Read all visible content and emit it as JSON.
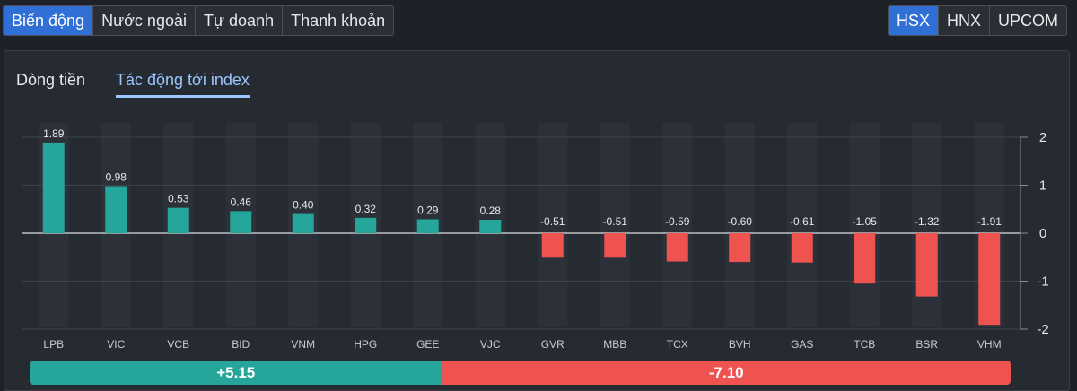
{
  "main_tabs": [
    {
      "label": "Biến động",
      "active": true
    },
    {
      "label": "Nước ngoài",
      "active": false
    },
    {
      "label": "Tự doanh",
      "active": false
    },
    {
      "label": "Thanh khoản",
      "active": false
    }
  ],
  "exchange_tabs": [
    {
      "label": "HSX",
      "active": true
    },
    {
      "label": "HNX",
      "active": false
    },
    {
      "label": "UPCOM",
      "active": false
    }
  ],
  "sub_tabs": [
    {
      "label": "Dòng tiền",
      "active": false
    },
    {
      "label": "Tác động tới index",
      "active": true
    }
  ],
  "colors": {
    "positive": "#26a69a",
    "negative": "#ef5350",
    "active_tab": "#2f6fd6",
    "subtab_active": "#9ac6ff"
  },
  "chart_data": {
    "type": "bar",
    "categories": [
      "LPB",
      "VIC",
      "VCB",
      "BID",
      "VNM",
      "HPG",
      "GEE",
      "VJC",
      "GVR",
      "MBB",
      "TCX",
      "BVH",
      "GAS",
      "TCB",
      "BSR",
      "VHM"
    ],
    "values": [
      1.89,
      0.98,
      0.53,
      0.46,
      0.4,
      0.32,
      0.29,
      0.28,
      -0.51,
      -0.51,
      -0.59,
      -0.6,
      -0.61,
      -1.05,
      -1.32,
      -1.91
    ],
    "value_labels": [
      "1.89",
      "0.98",
      "0.53",
      "0.46",
      "0.40",
      "0.32",
      "0.29",
      "0.28",
      "-0.51",
      "-0.51",
      "-0.59",
      "-0.60",
      "-0.61",
      "-1.05",
      "-1.32",
      "-1.91"
    ],
    "yticks": [
      2,
      1,
      0,
      -1,
      -2
    ],
    "ylim": [
      -2,
      2
    ],
    "grid": true,
    "y_axis_side": "right"
  },
  "summary": {
    "positive_label": "+5.15",
    "positive_value": 5.15,
    "negative_label": "-7.10",
    "negative_value": 7.1
  }
}
